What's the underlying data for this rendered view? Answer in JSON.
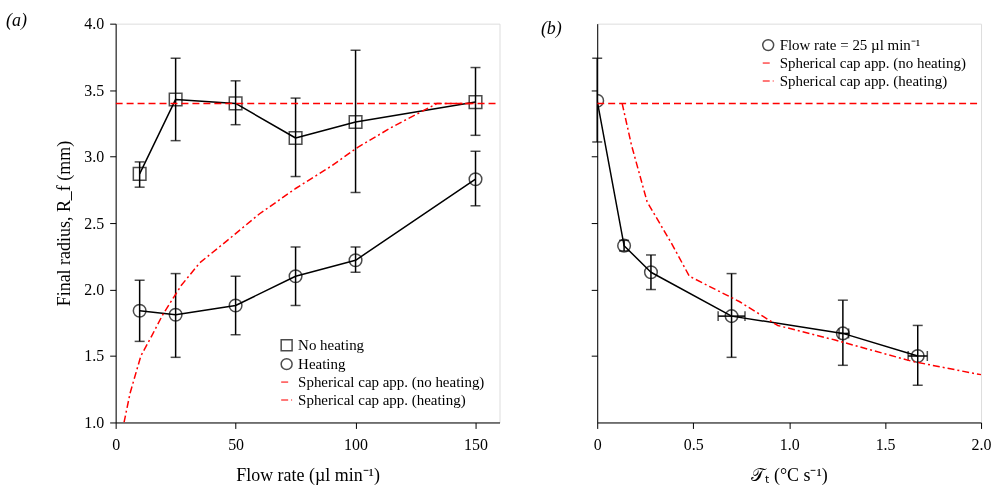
{
  "chart_data": [
    {
      "type": "line",
      "title": "(a)",
      "xlabel": "Flow rate (µl min⁻¹)",
      "ylabel": "Final radius, R_f (mm)",
      "xlim": [
        0,
        160
      ],
      "xticks": [
        0,
        50,
        100,
        150
      ],
      "ylim": [
        1.0,
        4.0
      ],
      "yticks": [
        {
          "value": 1.0,
          "label": "1.0"
        },
        {
          "value": 1.5,
          "label": "1.5"
        },
        {
          "value": 2.0,
          "label": "2.0"
        },
        {
          "value": 2.5,
          "label": "2.5"
        },
        {
          "value": 3.0,
          "label": "3.0"
        },
        {
          "value": 3.5,
          "label": "3.5"
        },
        {
          "value": 4.0,
          "label": "4.0"
        }
      ],
      "legend": "bottom right",
      "grid": false,
      "series": [
        {
          "name": "No heating",
          "color": "#000000",
          "marker": "square",
          "line_style": "solid",
          "x": [
            10,
            25,
            50,
            75,
            100,
            150
          ],
          "values": [
            2.87,
            3.43,
            3.4,
            3.14,
            3.26,
            3.41
          ],
          "errors": [
            [
              2.77,
              2.96
            ],
            [
              3.12,
              3.74
            ],
            [
              3.24,
              3.57
            ],
            [
              2.85,
              3.44
            ],
            [
              2.73,
              3.8
            ],
            [
              3.16,
              3.67
            ]
          ]
        },
        {
          "name": "Heating",
          "color": "#000000",
          "marker": "circle",
          "line_style": "solid",
          "x": [
            10,
            25,
            50,
            75,
            100,
            150
          ],
          "values": [
            1.84,
            1.81,
            1.88,
            2.1,
            2.22,
            2.83
          ],
          "errors": [
            [
              1.61,
              2.07
            ],
            [
              1.49,
              2.12
            ],
            [
              1.66,
              2.1
            ],
            [
              1.88,
              2.32
            ],
            [
              2.13,
              2.32
            ],
            [
              2.63,
              3.04
            ]
          ]
        },
        {
          "name": "Spherical cap app. (no heating)",
          "color": "#ff0000",
          "marker": "none",
          "line_style": "dashed",
          "x": [
            0,
            160
          ],
          "values": [
            3.4,
            3.4
          ]
        },
        {
          "name": "Spherical cap app. (heating)",
          "color": "#ff0000",
          "marker": "none",
          "line_style": "dashdot",
          "x": [
            3.5,
            6,
            10.5,
            15,
            19.6,
            27.3,
            35,
            46.6,
            60,
            75,
            90,
            100.9,
            115,
            134,
            150
          ],
          "values": [
            1.0,
            1.22,
            1.5,
            1.65,
            1.81,
            2.03,
            2.2,
            2.37,
            2.57,
            2.76,
            2.93,
            3.07,
            3.22,
            3.4,
            3.4
          ]
        }
      ]
    },
    {
      "type": "line",
      "title": "(b)",
      "xlabel": "𝒯ₜ (°C s⁻¹)",
      "xlim": [
        0,
        2.0
      ],
      "xticks": [
        0,
        0.5,
        {
          "value": 1.0,
          "label": "1.0"
        },
        1.5,
        {
          "value": 2.0,
          "label": "2.0"
        }
      ],
      "ylim": [
        1.0,
        4.0
      ],
      "yticks": [
        {
          "value": 1.5,
          "label": null
        },
        {
          "value": 2.0,
          "label": null
        },
        {
          "value": 2.5,
          "label": null
        },
        {
          "value": 3.0,
          "label": null
        },
        {
          "value": 3.5,
          "label": null
        }
      ],
      "tick_labels": "x",
      "legend": "top right",
      "grid": false,
      "series": [
        {
          "name": "Flow rate = 25 µl min⁻¹",
          "color": "#000000",
          "marker": "circle",
          "line_style": "solid",
          "x": [
            0,
            0.14,
            0.28,
            0.7,
            1.28,
            1.67
          ],
          "values": [
            3.42,
            2.33,
            2.13,
            1.8,
            1.67,
            1.5
          ],
          "errors": [
            [
              3.11,
              3.74
            ],
            [
              2.29,
              2.37
            ],
            [
              2.0,
              2.26
            ],
            [
              1.49,
              2.12
            ],
            [
              1.43,
              1.92
            ],
            [
              1.28,
              1.73
            ]
          ],
          "xerrors": [
            null,
            null,
            null,
            [
              0.63,
              0.77
            ],
            [
              1.26,
              1.31
            ],
            [
              1.62,
              1.72
            ]
          ]
        },
        {
          "name": "Spherical cap app. (no heating)",
          "color": "#ff0000",
          "marker": "none",
          "line_style": "dashed",
          "x": [
            0,
            2.0
          ],
          "values": [
            3.4,
            3.4
          ]
        },
        {
          "name": "Spherical cap app. (heating)",
          "color": "#ff0000",
          "marker": "none",
          "line_style": "dashdot",
          "x": [
            0.13,
            0.178,
            0.26,
            0.39,
            0.48,
            0.74,
            0.94,
            1.24,
            1.64,
            1.96,
            2.0
          ],
          "values": [
            3.4,
            3.09,
            2.66,
            2.34,
            2.1,
            1.91,
            1.73,
            1.62,
            1.46,
            1.37,
            1.36
          ]
        }
      ]
    }
  ]
}
